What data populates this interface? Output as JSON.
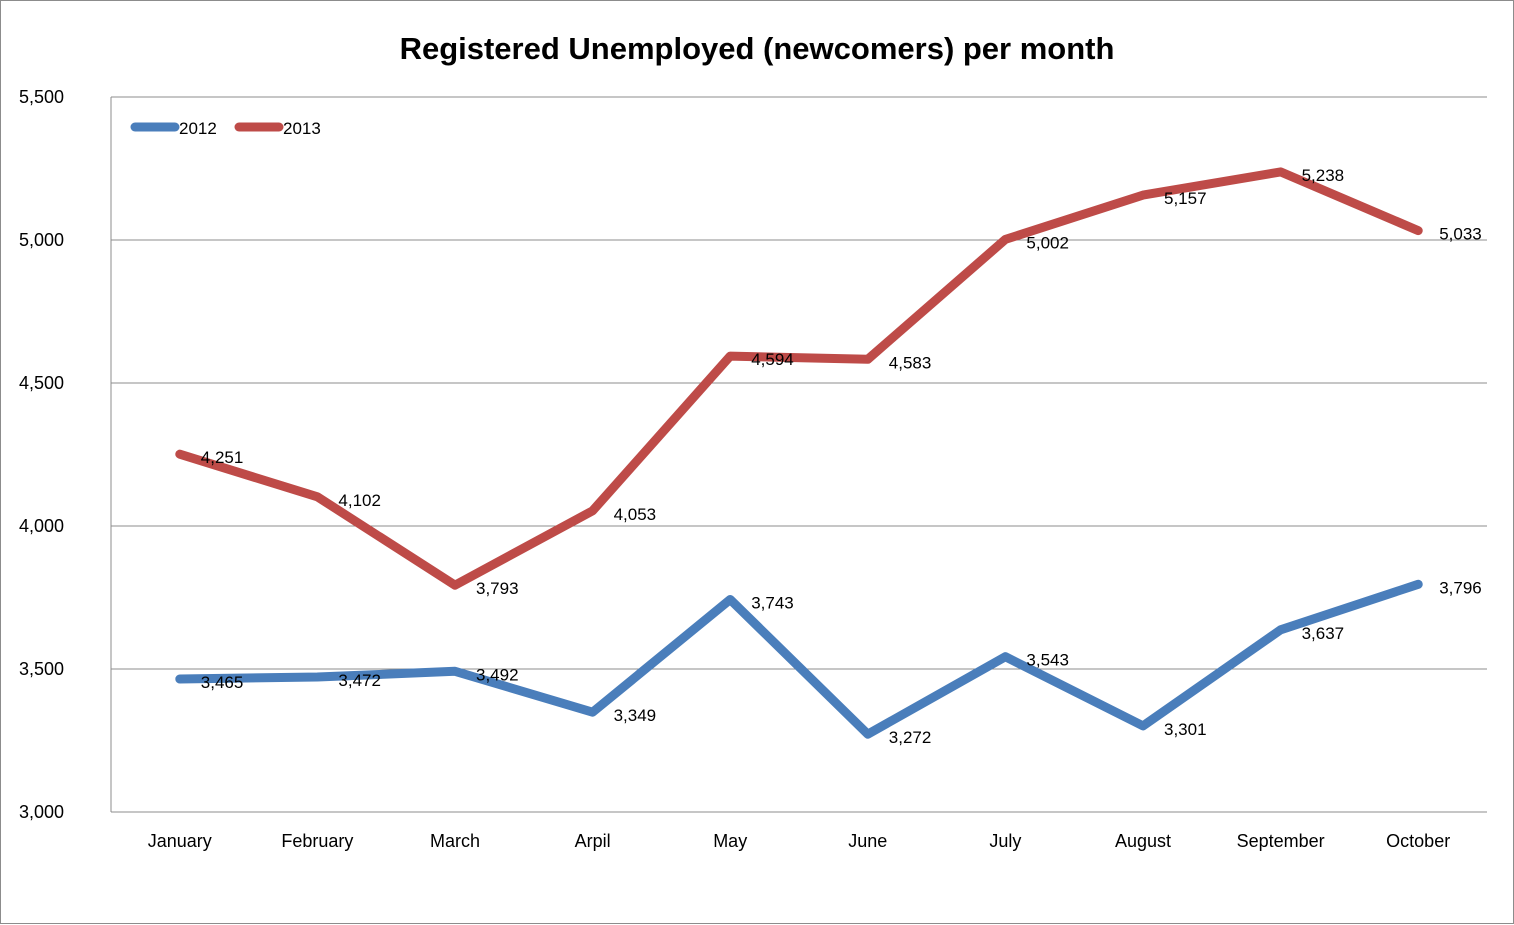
{
  "chart_data": {
    "type": "line",
    "title": "Registered Unemployed (newcomers) per month",
    "xlabel": "",
    "ylabel": "",
    "categories": [
      "January",
      "February",
      "March",
      "Arpil",
      "May",
      "June",
      "July",
      "August",
      "September",
      "October"
    ],
    "ylim": [
      3000,
      5500
    ],
    "yticks": [
      3000,
      3500,
      4000,
      4500,
      5000,
      5500
    ],
    "ytick_labels": [
      "3,000",
      "3,500",
      "4,000",
      "4,500",
      "5,000",
      "5,500"
    ],
    "grid": true,
    "legend_position": "top-left",
    "series": [
      {
        "name": "2012",
        "color": "#4a7ebb",
        "values": [
          3465,
          3472,
          3492,
          3349,
          3743,
          3272,
          3543,
          3301,
          3637,
          3796
        ],
        "labels": [
          "3,465",
          "3,472",
          "3,492",
          "3,349",
          "3,743",
          "3,272",
          "3,543",
          "3,301",
          "3,637",
          "3,796"
        ]
      },
      {
        "name": "2013",
        "color": "#be4b48",
        "values": [
          4251,
          4102,
          3793,
          4053,
          4594,
          4583,
          5002,
          5157,
          5238,
          5033
        ],
        "labels": [
          "4,251",
          "4,102",
          "3,793",
          "4,053",
          "4,594",
          "4,583",
          "5,002",
          "5,157",
          "5,238",
          "5,033"
        ]
      }
    ]
  }
}
